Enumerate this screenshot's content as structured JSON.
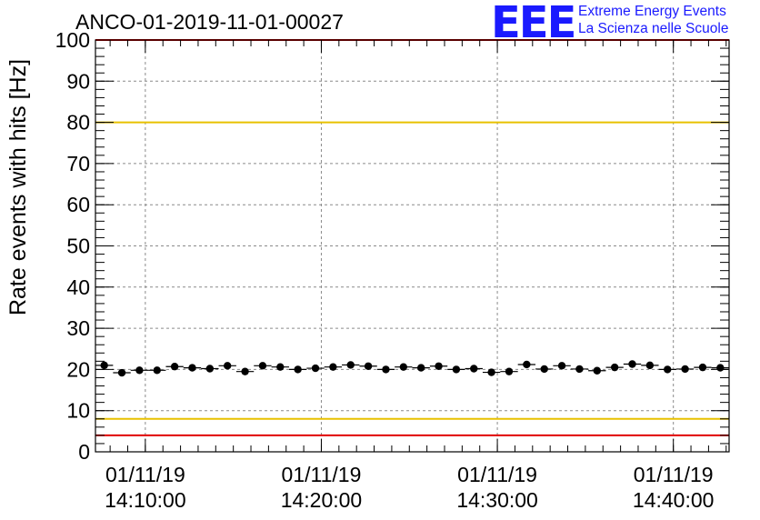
{
  "chart_data": {
    "type": "scatter",
    "title": "ANCO-01-2019-11-01-00027",
    "ylabel": "Rate events with hits [Hz]",
    "ylim": [
      0,
      100
    ],
    "yticks": [
      0,
      10,
      20,
      30,
      40,
      50,
      60,
      70,
      80,
      90,
      100
    ],
    "xlim": [
      "2019-11-01 14:07:10",
      "2019-11-01 14:43:10"
    ],
    "xticks": [
      {
        "t": "2019-11-01 14:10:00",
        "date": "01/11/19",
        "time": "14:10:00"
      },
      {
        "t": "2019-11-01 14:20:00",
        "date": "01/11/19",
        "time": "14:20:00"
      },
      {
        "t": "2019-11-01 14:30:00",
        "date": "01/11/19",
        "time": "14:30:00"
      },
      {
        "t": "2019-11-01 14:40:00",
        "date": "01/11/19",
        "time": "14:40:00"
      }
    ],
    "grid": true,
    "bin_width_s": 60,
    "x": [
      "14:07:40",
      "14:08:40",
      "14:09:40",
      "14:10:40",
      "14:11:40",
      "14:12:40",
      "14:13:40",
      "14:14:40",
      "14:15:40",
      "14:16:40",
      "14:17:40",
      "14:18:40",
      "14:19:40",
      "14:20:40",
      "14:21:40",
      "14:22:40",
      "14:23:40",
      "14:24:40",
      "14:25:40",
      "14:26:40",
      "14:27:40",
      "14:28:40",
      "14:29:40",
      "14:30:40",
      "14:31:40",
      "14:32:40",
      "14:33:40",
      "14:34:40",
      "14:35:40",
      "14:36:40",
      "14:37:40",
      "14:38:40",
      "14:39:40",
      "14:40:40",
      "14:41:40",
      "14:42:40"
    ],
    "values": [
      21.0,
      19.2,
      19.8,
      19.8,
      20.7,
      20.4,
      20.2,
      20.9,
      19.5,
      20.9,
      20.6,
      20.0,
      20.3,
      20.6,
      21.1,
      20.8,
      20.0,
      20.6,
      20.4,
      20.8,
      20.0,
      20.2,
      19.3,
      19.5,
      21.2,
      20.1,
      20.9,
      20.1,
      19.7,
      20.5,
      21.3,
      21.0,
      20.0,
      20.1,
      20.5,
      20.4
    ],
    "reference_lines": [
      {
        "y": 80,
        "color": "#e8c100"
      },
      {
        "y": 8,
        "color": "#e8c100"
      },
      {
        "y": 100,
        "color": "#e00000"
      },
      {
        "y": 4,
        "color": "#e00000"
      }
    ]
  },
  "logo": {
    "mark": "EEE",
    "line1": "Extreme Energy Events",
    "line2": "La Scienza nelle Scuole",
    "color": "#1a1aff"
  }
}
